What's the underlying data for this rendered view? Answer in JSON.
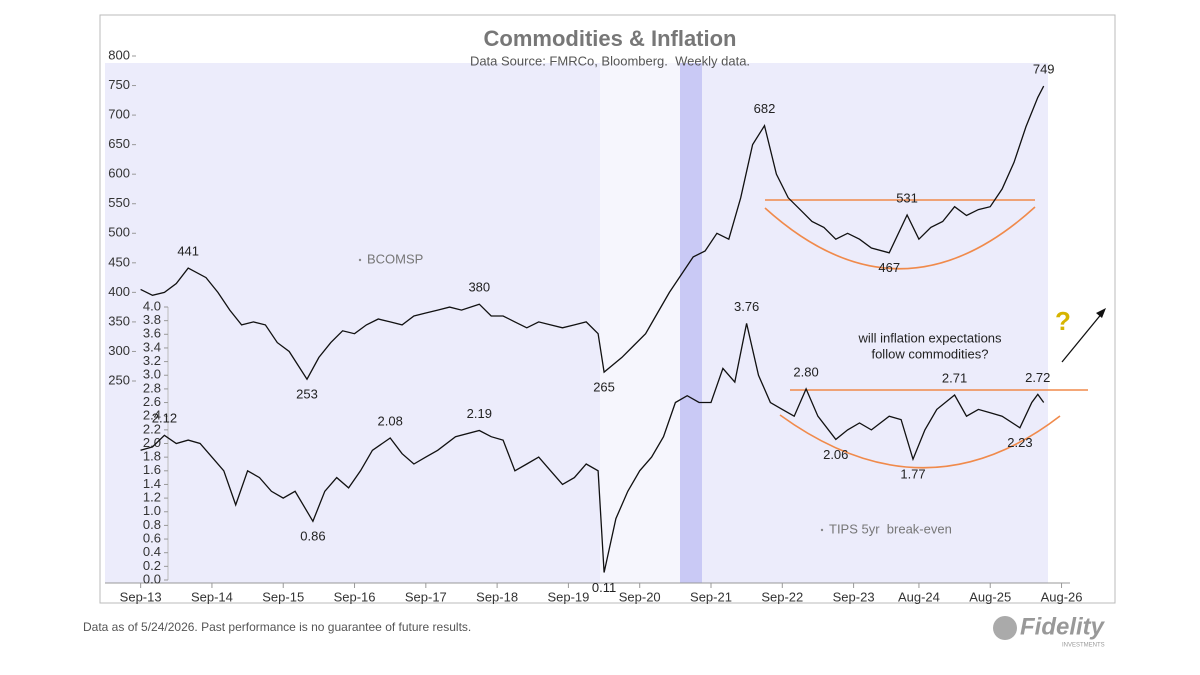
{
  "chart_data": {
    "type": "line",
    "title": "Commodities & Inflation",
    "subtitle": "Data Source: FMRCo, Bloomberg.  Weekly data.",
    "xlim": [
      "2013-03",
      "2027-05"
    ],
    "xticks": [
      {
        "value": "2013-09",
        "label": "Sep-13"
      },
      {
        "value": "2014-09",
        "label": "Sep-14"
      },
      {
        "value": "2015-09",
        "label": "Sep-15"
      },
      {
        "value": "2016-09",
        "label": "Sep-16"
      },
      {
        "value": "2017-09",
        "label": "Sep-17"
      },
      {
        "value": "2018-09",
        "label": "Sep-18"
      },
      {
        "value": "2019-09",
        "label": "Sep-19"
      },
      {
        "value": "2020-09",
        "label": "Sep-20"
      },
      {
        "value": "2021-09",
        "label": "Sep-21"
      },
      {
        "value": "2022-09",
        "label": "Sep-22"
      },
      {
        "value": "2023-09",
        "label": "Sep-23"
      },
      {
        "value": "2024-08",
        "label": "Aug-24"
      },
      {
        "value": "2025-08",
        "label": "Aug-25"
      },
      {
        "value": "2026-08",
        "label": "Aug-26"
      }
    ],
    "ylim": [
      250,
      800
    ],
    "yticks": [
      250,
      300,
      350,
      400,
      450,
      500,
      550,
      600,
      650,
      700,
      750,
      800
    ],
    "y2lim": [
      0,
      4
    ],
    "y2ticks": [
      {
        "value": 0,
        "label": "0.0"
      },
      0.2,
      0.4,
      0.6,
      0.8,
      {
        "value": 1,
        "label": "1.0"
      },
      1.2,
      1.4,
      1.6,
      1.8,
      {
        "value": 2,
        "label": "2.0"
      },
      2.2,
      2.4,
      2.6,
      2.8,
      {
        "value": 3,
        "label": "3.0"
      },
      3.2,
      3.4,
      3.6,
      3.8,
      {
        "value": 4,
        "label": "4.0"
      }
    ],
    "series": [
      {
        "name": "BCOMSP",
        "color": "#111111",
        "x": [
          "2013-09",
          "2013-11",
          "2014-01",
          "2014-03",
          "2014-05",
          "2014-08",
          "2014-10",
          "2014-12",
          "2015-02",
          "2015-04",
          "2015-06",
          "2015-08",
          "2015-10",
          "2016-01",
          "2016-03",
          "2016-05",
          "2016-07",
          "2016-09",
          "2016-11",
          "2017-01",
          "2017-03",
          "2017-05",
          "2017-07",
          "2017-09",
          "2017-11",
          "2018-01",
          "2018-03",
          "2018-06",
          "2018-08",
          "2018-10",
          "2018-12",
          "2019-02",
          "2019-04",
          "2019-06",
          "2019-08",
          "2019-10",
          "2019-12",
          "2020-02",
          "2020-03",
          "2020-06",
          "2020-08",
          "2020-10",
          "2020-12",
          "2021-02",
          "2021-04",
          "2021-06",
          "2021-08",
          "2021-10",
          "2021-12",
          "2022-02",
          "2022-04",
          "2022-06",
          "2022-08",
          "2022-10",
          "2022-12",
          "2023-02",
          "2023-04",
          "2023-06",
          "2023-08",
          "2023-10",
          "2023-12",
          "2024-03",
          "2024-06",
          "2024-08",
          "2024-10",
          "2024-12",
          "2025-02",
          "2025-04",
          "2025-06",
          "2025-08",
          "2025-10",
          "2025-12",
          "2026-02",
          "2026-04",
          "2026-05"
        ],
        "values": [
          405,
          395,
          400,
          415,
          441,
          425,
          400,
          370,
          345,
          350,
          345,
          315,
          300,
          253,
          290,
          315,
          335,
          330,
          345,
          355,
          350,
          345,
          360,
          365,
          370,
          375,
          370,
          380,
          360,
          360,
          350,
          340,
          350,
          345,
          340,
          345,
          350,
          330,
          265,
          290,
          310,
          330,
          365,
          400,
          430,
          460,
          470,
          500,
          490,
          560,
          650,
          682,
          600,
          560,
          540,
          520,
          510,
          490,
          500,
          490,
          475,
          467,
          531,
          490,
          510,
          520,
          545,
          530,
          540,
          545,
          575,
          620,
          680,
          730,
          749
        ],
        "annotations": [
          {
            "x": "2014-05",
            "value": 441
          },
          {
            "x": "2016-01",
            "value": 253
          },
          {
            "x": "2018-06",
            "value": 380
          },
          {
            "x": "2020-03",
            "value": 265
          },
          {
            "x": "2022-06",
            "value": 682
          },
          {
            "x": "2024-06",
            "value": 531
          },
          {
            "x": "2024-03",
            "value": 467
          },
          {
            "x": "2026-05",
            "value": 749
          }
        ]
      },
      {
        "name": "TIPS 5yr  break-even",
        "color": "#111111",
        "axis": "y2",
        "x": [
          "2013-09",
          "2013-11",
          "2014-01",
          "2014-03",
          "2014-05",
          "2014-07",
          "2014-09",
          "2014-11",
          "2015-01",
          "2015-03",
          "2015-05",
          "2015-07",
          "2015-09",
          "2015-11",
          "2016-02",
          "2016-04",
          "2016-06",
          "2016-08",
          "2016-10",
          "2016-12",
          "2017-03",
          "2017-05",
          "2017-07",
          "2017-09",
          "2017-11",
          "2018-02",
          "2018-06",
          "2018-08",
          "2018-10",
          "2018-12",
          "2019-02",
          "2019-04",
          "2019-06",
          "2019-08",
          "2019-10",
          "2019-12",
          "2020-02",
          "2020-03",
          "2020-05",
          "2020-07",
          "2020-09",
          "2020-11",
          "2021-01",
          "2021-03",
          "2021-05",
          "2021-07",
          "2021-09",
          "2021-11",
          "2022-01",
          "2022-03",
          "2022-05",
          "2022-07",
          "2022-09",
          "2022-11",
          "2023-01",
          "2023-03",
          "2023-06",
          "2023-08",
          "2023-10",
          "2023-12",
          "2024-03",
          "2024-05",
          "2024-07",
          "2024-09",
          "2024-11",
          "2025-02",
          "2025-04",
          "2025-06",
          "2025-08",
          "2025-10",
          "2026-01",
          "2026-03",
          "2026-04",
          "2026-05"
        ],
        "values": [
          1.9,
          1.95,
          2.12,
          2.0,
          2.05,
          2.0,
          1.8,
          1.6,
          1.1,
          1.6,
          1.5,
          1.3,
          1.2,
          1.3,
          0.86,
          1.3,
          1.5,
          1.35,
          1.6,
          1.9,
          2.08,
          1.85,
          1.7,
          1.8,
          1.9,
          2.1,
          2.19,
          2.1,
          2.05,
          1.6,
          1.7,
          1.8,
          1.6,
          1.4,
          1.5,
          1.7,
          1.6,
          0.11,
          0.9,
          1.3,
          1.6,
          1.8,
          2.1,
          2.6,
          2.7,
          2.6,
          2.6,
          3.1,
          2.9,
          3.76,
          3.0,
          2.6,
          2.5,
          2.4,
          2.8,
          2.4,
          2.06,
          2.2,
          2.3,
          2.2,
          2.4,
          2.35,
          1.77,
          2.2,
          2.5,
          2.71,
          2.4,
          2.5,
          2.45,
          2.4,
          2.23,
          2.6,
          2.72,
          2.6
        ],
        "annotations": [
          {
            "x": "2014-01",
            "value": 2.12
          },
          {
            "x": "2016-02",
            "value": 0.86
          },
          {
            "x": "2017-03",
            "value": 2.08
          },
          {
            "x": "2018-06",
            "value": 2.19
          },
          {
            "x": "2020-03",
            "value": 0.11
          },
          {
            "x": "2022-03",
            "value": 3.76
          },
          {
            "x": "2023-01",
            "value": 2.8,
            "label": "2.80"
          },
          {
            "x": "2023-06",
            "value": 2.06
          },
          {
            "x": "2025-02",
            "value": 2.71
          },
          {
            "x": "2024-07",
            "value": 1.77
          },
          {
            "x": "2026-01",
            "value": 2.23
          },
          {
            "x": "2026-04",
            "value": 2.72
          }
        ]
      }
    ],
    "question": [
      "will inflation expectations",
      "follow commodities?"
    ],
    "question_mark": "?"
  },
  "footer": {
    "note": "Data as of 5/24/2026. Past performance is no guarantee of future results.",
    "logo": "Fidelity",
    "logo_sub": "INVESTMENTS"
  }
}
